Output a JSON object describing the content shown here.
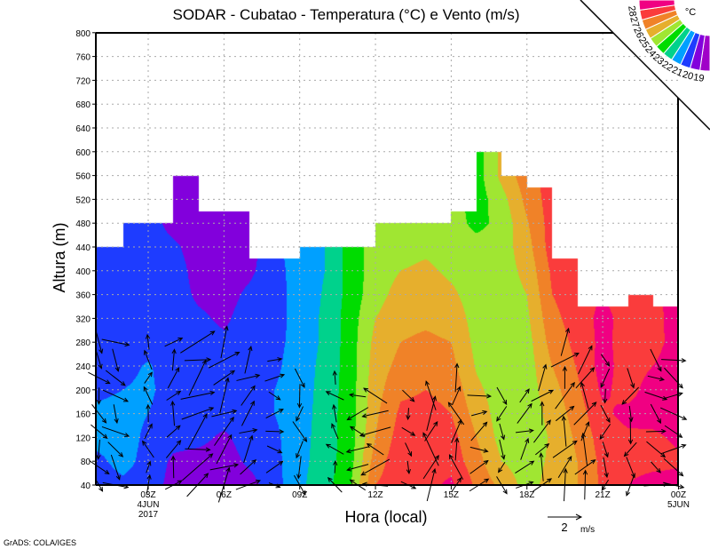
{
  "chart_data": {
    "type": "heatmap",
    "title": "SODAR - Cubatao - Temperatura (°C) e Vento (m/s)",
    "xlabel": "Hora (local)",
    "ylabel": "Altura (m)",
    "credit": "GrADS: COLA/IGES",
    "xlim_hours": [
      0.93,
      24
    ],
    "ylim": [
      40,
      800
    ],
    "yticks": [
      40,
      80,
      120,
      160,
      200,
      240,
      280,
      320,
      360,
      400,
      440,
      480,
      520,
      560,
      600,
      640,
      680,
      720,
      760,
      800
    ],
    "xticks": [
      {
        "hour": 3,
        "label": "03Z",
        "sub1": "4JUN",
        "sub2": "2017"
      },
      {
        "hour": 6,
        "label": "06Z"
      },
      {
        "hour": 9,
        "label": "09Z"
      },
      {
        "hour": 12,
        "label": "12Z"
      },
      {
        "hour": 15,
        "label": "15Z"
      },
      {
        "hour": 18,
        "label": "18Z"
      },
      {
        "hour": 21,
        "label": "21Z"
      },
      {
        "hour": 24,
        "label": "00Z",
        "sub1": "5JUN"
      }
    ],
    "grid": true,
    "legend": {
      "unit": "°C",
      "levels": [
        19,
        20,
        21,
        22,
        23,
        24,
        25,
        26,
        27,
        28
      ],
      "colors": [
        "#a000c8",
        "#8200dc",
        "#1e3cff",
        "#00a0ff",
        "#00d28c",
        "#00dc00",
        "#a0e632",
        "#e6af2d",
        "#f08228",
        "#fa3c3c",
        "#f00082"
      ],
      "placement": "top-right"
    },
    "data_top": [
      [
        0.93,
        2,
        440
      ],
      [
        2,
        4,
        480
      ],
      [
        4,
        5,
        560
      ],
      [
        5,
        7,
        500
      ],
      [
        7,
        9,
        420
      ],
      [
        9,
        12,
        440
      ],
      [
        12,
        15,
        480
      ],
      [
        15,
        16,
        500
      ],
      [
        16,
        17,
        600
      ],
      [
        17,
        18,
        560
      ],
      [
        18,
        19,
        540
      ],
      [
        19,
        20,
        420
      ],
      [
        20,
        22,
        340
      ],
      [
        22,
        23,
        360
      ],
      [
        23,
        24,
        340
      ]
    ],
    "temperature": {
      "heights": [
        40,
        80,
        120,
        160,
        200,
        240,
        280,
        320,
        360,
        400,
        440,
        480,
        520,
        560,
        600
      ],
      "hours": [
        1,
        2,
        3,
        4,
        5,
        6,
        7,
        8,
        9,
        10,
        11,
        12,
        13,
        14,
        15,
        16,
        17,
        18,
        19,
        20,
        21,
        22,
        23,
        24
      ],
      "values": [
        [
          20.6,
          20.8,
          21.3,
          21.2,
          20.8,
          20.6,
          20.5,
          20.5,
          20.5,
          20.5,
          20.5,
          20.5
        ],
        [
          20.8,
          21.3,
          21.4,
          21.3,
          21.0,
          20.7,
          20.5,
          20.5,
          20.5,
          20.5,
          20.5,
          20.5
        ],
        [
          20.6,
          20.7,
          20.8,
          21.0,
          21.2,
          21.1,
          20.6,
          20.5,
          20.5,
          20.5,
          20.5,
          20.5
        ],
        [
          19.6,
          19.8,
          20.4,
          20.5,
          20.5,
          20.5,
          20.5,
          20.5,
          20.5,
          20.5,
          20.2,
          19.6,
          19.5,
          19.5
        ],
        [
          19.5,
          19.6,
          20.3,
          20.5,
          20.5,
          20.5,
          20.5,
          20.2,
          19.8,
          19.6,
          19.5,
          19.5,
          19.5,
          19.5
        ],
        [
          19.5,
          19.5,
          19.8,
          20.5,
          20.5,
          20.5,
          20.2,
          19.8,
          19.6,
          19.5,
          19.5,
          19.5,
          19.5
        ],
        [
          19.6,
          20.2,
          20.5,
          20.5,
          20.5,
          20.5,
          20.5,
          20.5,
          20.2,
          19.8,
          19.6,
          19.5
        ],
        [
          20.6,
          20.7,
          20.8,
          21.0,
          21.0,
          20.8,
          20.7,
          20.6,
          20.6,
          20.6,
          20.7,
          20.7
        ],
        [
          21.8,
          21.7,
          21.6,
          21.5,
          21.5,
          21.5,
          21.4,
          21.4,
          21.4,
          21.5,
          21.6,
          21.6
        ],
        [
          22.6,
          22.5,
          22.5,
          22.5,
          22.4,
          22.3,
          22.2,
          22.2,
          22.1,
          22.0,
          22.0,
          22.0
        ],
        [
          23.9,
          23.6,
          23.5,
          23.5,
          23.5,
          23.5,
          23.5,
          23.5,
          23.4,
          23.4,
          23.4,
          23.4
        ],
        [
          27.0,
          26.5,
          26.0,
          25.8,
          25.6,
          25.5,
          25.3,
          25.0,
          24.6,
          24.5,
          24.5,
          24.5
        ],
        [
          27.6,
          27.7,
          27.5,
          27.2,
          26.8,
          26.3,
          26.0,
          25.7,
          25.4,
          25.0,
          24.6,
          24.5
        ],
        [
          27.7,
          27.8,
          27.6,
          27.3,
          27.0,
          26.6,
          26.2,
          25.8,
          25.5,
          25.2,
          24.8,
          24.5
        ],
        [
          28.2,
          27.6,
          27.4,
          27.0,
          26.7,
          26.3,
          26.0,
          25.6,
          25.2,
          24.8,
          24.6,
          24.5,
          24.5
        ],
        [
          26.8,
          26.4,
          26.0,
          25.6,
          25.2,
          24.9,
          24.7,
          24.6,
          24.5,
          24.5,
          24.4,
          23.7,
          23.5,
          23.5,
          23.5
        ],
        [
          25.7,
          25.0,
          24.6,
          24.5,
          24.5,
          24.5,
          24.5,
          24.5,
          24.5,
          24.5,
          24.5,
          24.3,
          24.6,
          25.3,
          25.3
        ],
        [
          24.6,
          24.5,
          24.5,
          24.5,
          24.5,
          24.5,
          24.6,
          24.8,
          25.0,
          25.3,
          25.6,
          25.9,
          26.3,
          26.6
        ],
        [
          25.4,
          25.2,
          25.1,
          25.3,
          25.6,
          26.0,
          26.4,
          26.7,
          27.0,
          27.2,
          27.5
        ],
        [
          26.0,
          26.0,
          26.2,
          26.5,
          26.8,
          27.1,
          27.3,
          27.5,
          27.6
        ],
        [
          27.2,
          27.3,
          27.5,
          27.8,
          28.2,
          28.4,
          28.3,
          28.3,
          28.0
        ],
        [
          28.0,
          27.6,
          27.8,
          28.3,
          27.6,
          27.5,
          27.5,
          27.6,
          27.5,
          27.3
        ],
        [
          28.5,
          27.6,
          27.8,
          28.4,
          28.5,
          28.0,
          27.6,
          27.7,
          27.8,
          27.6
        ],
        [
          28.5,
          27.8,
          28.2,
          28.6,
          28.6,
          28.6,
          28.5,
          28.4,
          28.4
        ]
      ]
    },
    "wind": {
      "reference_speed": 2,
      "reference_label": "2",
      "reference_unit": "m/s",
      "levels": [
        40,
        70,
        100,
        130,
        160,
        190,
        220,
        250,
        280
      ],
      "columns": [
        {
          "hour": 1.05,
          "dir_deg": -60,
          "speed": 0.6,
          "top": 280
        },
        {
          "hour": 1.7,
          "dir_deg": -45,
          "speed": 0.7,
          "top": 280
        },
        {
          "hour": 3.0,
          "dir_deg": 90,
          "speed": 0.5,
          "top": 300
        },
        {
          "hour": 4.0,
          "dir_deg": 60,
          "speed": 0.6,
          "top": 280
        },
        {
          "hour": 4.95,
          "dir_deg": 30,
          "speed": 1.0,
          "top": 280
        },
        {
          "hour": 6.0,
          "dir_deg": 45,
          "speed": 0.9,
          "top": 280
        },
        {
          "hour": 6.95,
          "dir_deg": 45,
          "speed": 0.7,
          "top": 250
        },
        {
          "hour": 8.0,
          "dir_deg": 0,
          "speed": 0.5,
          "top": 250
        },
        {
          "hour": 9.0,
          "dir_deg": -90,
          "speed": 0.6,
          "top": 220
        },
        {
          "hour": 10.4,
          "dir_deg": 120,
          "speed": 0.5,
          "top": 220
        },
        {
          "hour": 11.3,
          "dir_deg": 180,
          "speed": 0.6,
          "top": 190
        },
        {
          "hour": 12.0,
          "dir_deg": 180,
          "speed": 0.8,
          "top": 190
        },
        {
          "hour": 13.3,
          "dir_deg": -60,
          "speed": 0.4,
          "top": 190
        },
        {
          "hour": 14.2,
          "dir_deg": 80,
          "speed": 0.9,
          "top": 190
        },
        {
          "hour": 15.2,
          "dir_deg": 90,
          "speed": 0.7,
          "top": 220
        },
        {
          "hour": 16.1,
          "dir_deg": 20,
          "speed": 0.6,
          "top": 190
        },
        {
          "hour": 17.0,
          "dir_deg": -90,
          "speed": 0.5,
          "top": 190
        },
        {
          "hour": 17.9,
          "dir_deg": 40,
          "speed": 0.6,
          "top": 190
        },
        {
          "hour": 18.6,
          "dir_deg": 60,
          "speed": 0.7,
          "top": 220
        },
        {
          "hour": 19.5,
          "dir_deg": 60,
          "speed": 0.8,
          "top": 280
        },
        {
          "hour": 20.3,
          "dir_deg": 70,
          "speed": 0.8,
          "top": 250
        },
        {
          "hour": 21.1,
          "dir_deg": -90,
          "speed": 0.5,
          "top": 250
        },
        {
          "hour": 22.1,
          "dir_deg": -100,
          "speed": 0.6,
          "top": 220
        },
        {
          "hour": 23.1,
          "dir_deg": -30,
          "speed": 0.6,
          "top": 250
        },
        {
          "hour": 23.8,
          "dir_deg": -15,
          "speed": 0.7,
          "top": 250
        }
      ]
    }
  }
}
